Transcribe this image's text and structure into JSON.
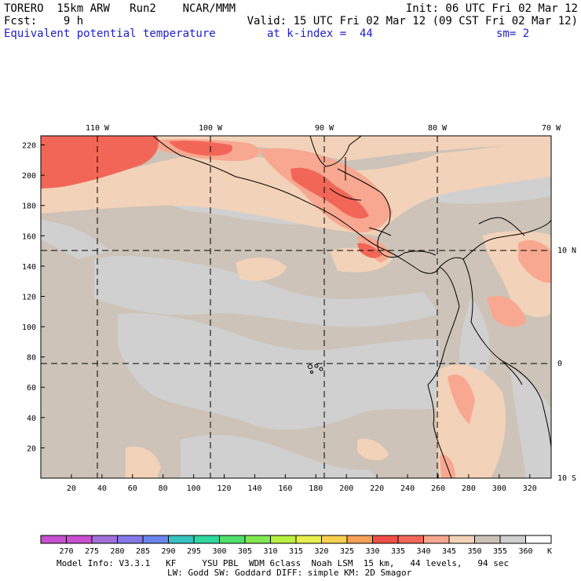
{
  "header": {
    "model": "TORERO  15km ARW   Run2    NCAR/MMM",
    "init": "Init: 06 UTC Fri 02 Mar 12",
    "fcst": "Fcst:    9 h",
    "valid": "Valid: 15 UTC Fri 02 Mar 12 (09 CST Fri 02 Mar 12)",
    "field": "Equivalent potential temperature",
    "level": "at k-index =  44",
    "smooth": "sm= 2"
  },
  "map": {
    "top_lon_labels": [
      "110 W",
      "100 W",
      "90 W",
      "80 W",
      "70 W"
    ],
    "right_lat_labels": [
      "10 N",
      "0",
      "10 S"
    ],
    "y_grid_labels": [
      "220",
      "200",
      "180",
      "160",
      "140",
      "120",
      "100",
      "80",
      "60",
      "40",
      "20"
    ],
    "x_grid_labels": [
      "20",
      "40",
      "60",
      "80",
      "100",
      "120",
      "140",
      "160",
      "180",
      "200",
      "220",
      "240",
      "260",
      "280",
      "300",
      "320"
    ]
  },
  "colorbar": {
    "unit": "K",
    "labels": [
      "270",
      "275",
      "280",
      "285",
      "290",
      "295",
      "300",
      "305",
      "310",
      "315",
      "320",
      "325",
      "330",
      "335",
      "340",
      "345",
      "350",
      "355",
      "360"
    ],
    "colors": [
      "#c84fd0",
      "#a070d8",
      "#8478e8",
      "#6a86ec",
      "#36c2c0",
      "#30d8a0",
      "#50e070",
      "#80e850",
      "#b8f040",
      "#e8f050",
      "#f8d050",
      "#f8a058",
      "#f05048",
      "#f26658",
      "#f8a890",
      "#f2d2b8",
      "#cdc3b8",
      "#d0d0d0",
      "#ffffff"
    ]
  },
  "model_info": {
    "line1": "Model Info: V3.3.1   KF     YSU PBL  WDM 6class  Noah LSM  15 km,   44 levels,   94 sec",
    "line2": "LW: Godd SW: Goddard DIFF: simple KM: 2D Smagor"
  }
}
